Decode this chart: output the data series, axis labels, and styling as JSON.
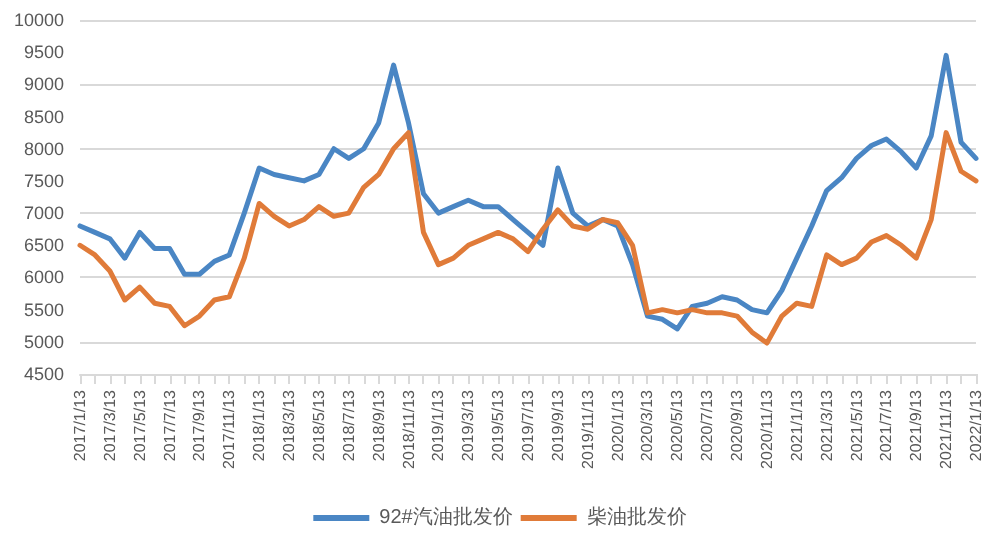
{
  "chart_data": {
    "type": "line",
    "categories": [
      "2017/1/13",
      null,
      "2017/3/13",
      null,
      "2017/5/13",
      null,
      "2017/7/13",
      null,
      "2017/9/13",
      null,
      "2017/11/13",
      null,
      "2018/1/13",
      null,
      "2018/3/13",
      null,
      "2018/5/13",
      null,
      "2018/7/13",
      null,
      "2018/9/13",
      null,
      "2018/11/13",
      null,
      "2019/1/13",
      null,
      "2019/3/13",
      null,
      "2019/5/13",
      null,
      "2019/7/13",
      null,
      "2019/9/13",
      null,
      "2019/11/13",
      null,
      "2020/1/13",
      null,
      "2020/3/13",
      null,
      "2020/5/13",
      null,
      "2020/7/13",
      null,
      "2020/9/13",
      null,
      "2020/11/13",
      null,
      "2021/1/13",
      null,
      "2021/3/13",
      null,
      "2021/5/13",
      null,
      "2021/7/13",
      null,
      "2021/9/13",
      null,
      "2021/11/13",
      null,
      "2022/1/13"
    ],
    "series": [
      {
        "name": "92#汽油批发价",
        "color": "#4a86c4",
        "values": [
          6800,
          6700,
          6600,
          6300,
          6700,
          6450,
          6450,
          6050,
          6050,
          6250,
          6350,
          7000,
          7700,
          7600,
          7550,
          7500,
          7600,
          8000,
          7850,
          8000,
          8400,
          9300,
          8400,
          7300,
          7000,
          7100,
          7200,
          7100,
          7100,
          6900,
          6700,
          6500,
          7700,
          7000,
          6800,
          6900,
          6800,
          6200,
          5400,
          5350,
          5200,
          5550,
          5600,
          5700,
          5650,
          5500,
          5450,
          5800,
          6300,
          6800,
          7350,
          7550,
          7850,
          8050,
          8150,
          7950,
          7700,
          8200,
          9450,
          8100,
          7850
        ]
      },
      {
        "name": "柴油批发价",
        "color": "#e07b39",
        "values": [
          6500,
          6350,
          6100,
          5650,
          5850,
          5600,
          5550,
          5250,
          5400,
          5650,
          5700,
          6300,
          7150,
          6950,
          6800,
          6900,
          7100,
          6950,
          7000,
          7400,
          7600,
          8000,
          8250,
          6700,
          6200,
          6300,
          6500,
          6600,
          6700,
          6600,
          6400,
          6750,
          7050,
          6800,
          6750,
          6900,
          6850,
          6500,
          5450,
          5500,
          5450,
          5500,
          5450,
          5450,
          5400,
          5150,
          4980,
          5400,
          5600,
          5550,
          6350,
          6200,
          6300,
          6550,
          6650,
          6500,
          6300,
          6900,
          8250,
          7650,
          7500
        ]
      }
    ],
    "ylim": [
      4500,
      10000
    ],
    "yticks": [
      4500,
      5000,
      5500,
      6000,
      6500,
      7000,
      7500,
      8000,
      8500,
      9000,
      9500,
      10000
    ],
    "grid": "y",
    "legend": "bottom",
    "marker": "none",
    "line_style": "solid"
  }
}
